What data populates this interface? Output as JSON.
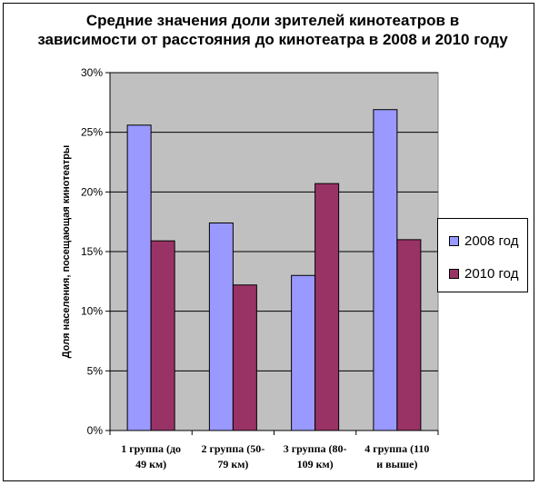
{
  "chart_data": {
    "type": "bar",
    "title": "Средние значения доли зрителей кинотеатров в зависимости от расстояния до кинотеатра в 2008 и 2010 году",
    "xlabel": "",
    "ylabel": "Доля населения, посещающая кинотеатры",
    "ylim": [
      0,
      30
    ],
    "yticks": [
      "0%",
      "5%",
      "10%",
      "15%",
      "20%",
      "25%",
      "30%"
    ],
    "categories": [
      [
        "1 группа (до",
        "49 км)"
      ],
      [
        "2 группа  (50-",
        "79 км)"
      ],
      [
        "3 группа (80-",
        "109 км)"
      ],
      [
        "4 группа (110",
        "и выше)"
      ]
    ],
    "series": [
      {
        "name": "2008 год",
        "color": "#9999ff",
        "values": [
          25.6,
          17.4,
          13.0,
          26.9
        ]
      },
      {
        "name": "2010 год",
        "color": "#993366",
        "values": [
          15.9,
          12.2,
          20.7,
          16.0
        ]
      }
    ],
    "grid": true,
    "plot_background": "#c0c0c0",
    "legend_position": "right"
  }
}
